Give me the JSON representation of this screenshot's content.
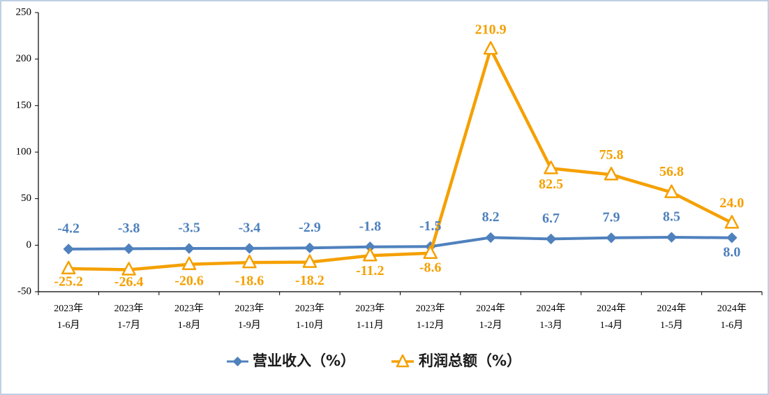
{
  "chart_data": {
    "type": "line",
    "categories": [
      "2023年1-6月",
      "2023年1-7月",
      "2023年1-8月",
      "2023年1-9月",
      "2023年1-10月",
      "2023年1-11月",
      "2023年1-12月",
      "2024年1-2月",
      "2024年1-3月",
      "2024年1-4月",
      "2024年1-5月",
      "2024年1-6月"
    ],
    "series": [
      {
        "name": "营业收入（%）",
        "color": "#4F81BD",
        "marker": "diamond",
        "values": [
          -4.2,
          -3.8,
          -3.5,
          -3.4,
          -2.9,
          -1.8,
          -1.5,
          8.2,
          6.7,
          7.9,
          8.5,
          8.0
        ]
      },
      {
        "name": "利润总额（%）",
        "color": "#F5A000",
        "marker": "triangle",
        "values": [
          -25.2,
          -26.4,
          -20.6,
          -18.6,
          -18.2,
          -11.2,
          -8.6,
          210.9,
          82.5,
          75.8,
          56.8,
          24.0
        ]
      }
    ],
    "ylim": [
      -50,
      250
    ],
    "yticks": [
      -50,
      0,
      50,
      100,
      150,
      200,
      250
    ],
    "grid": false,
    "legend": "bottom",
    "data_labels": true
  }
}
